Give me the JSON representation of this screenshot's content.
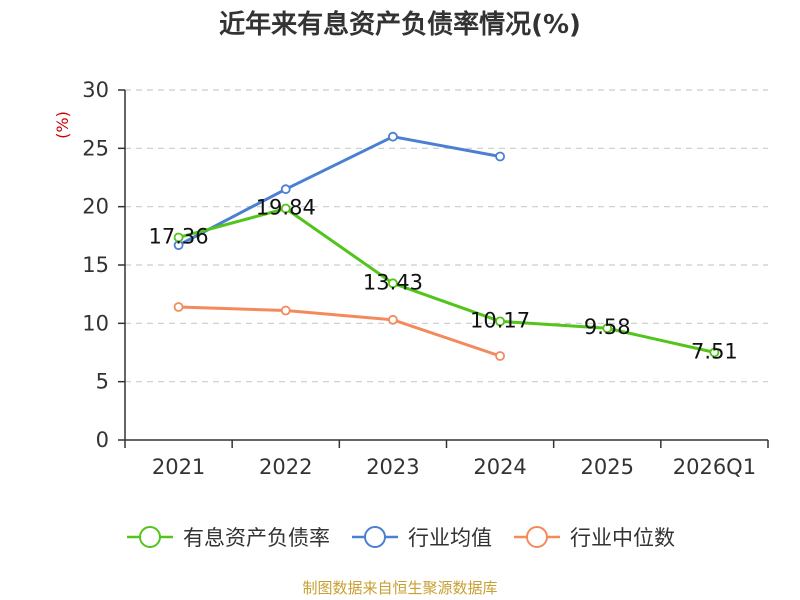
{
  "chart_data": {
    "type": "line",
    "title": "近年来有息资产负债率情况(%)",
    "ylabel": "(%)",
    "xlabel": "",
    "categories": [
      "2021",
      "2022",
      "2023",
      "2024",
      "2025",
      "2026Q1"
    ],
    "ylim": [
      0,
      30
    ],
    "yticks": [
      0,
      5,
      10,
      15,
      20,
      25,
      30
    ],
    "grid": true,
    "legend_position": "bottom",
    "series": [
      {
        "name": "有息资产负债率",
        "color": "#52c41a",
        "values": [
          17.36,
          19.84,
          13.43,
          10.17,
          9.58,
          7.51
        ],
        "labels": [
          "17.36",
          "19.84",
          "13.43",
          "10.17",
          "9.58",
          "7.51"
        ]
      },
      {
        "name": "行业均值",
        "color": "#4a7fd4",
        "values": [
          16.7,
          21.5,
          26.0,
          24.3,
          null,
          null
        ]
      },
      {
        "name": "行业中位数",
        "color": "#f48a5c",
        "values": [
          11.4,
          11.1,
          10.3,
          7.2,
          null,
          null
        ]
      }
    ]
  },
  "colors": {
    "axis": "#333333",
    "grid": "#cccccc",
    "ylabel": "#cc0000",
    "source": "#c8a032"
  },
  "source_text": "制图数据来自恒生聚源数据库"
}
